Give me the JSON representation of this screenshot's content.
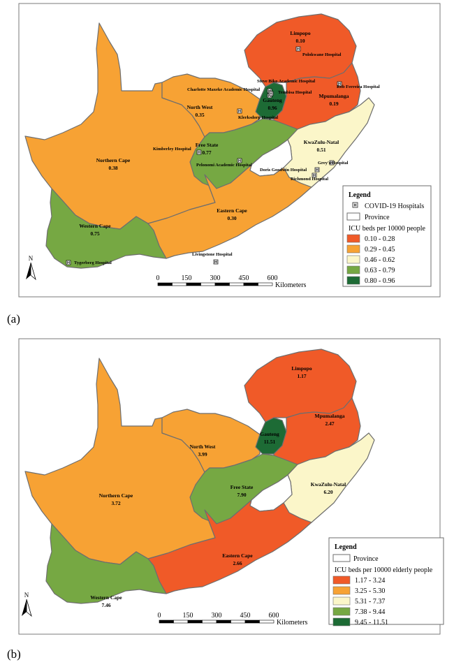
{
  "panel_a": {
    "label": "(a)",
    "provinces": [
      {
        "id": "limpopo",
        "name": "Limpopo",
        "value": "0.10",
        "color": "#f05a28"
      },
      {
        "id": "mpumalanga",
        "name": "Mpumalanga",
        "value": "0.19",
        "color": "#f05a28"
      },
      {
        "id": "gauteng",
        "name": "Gauteng",
        "value": "0.96",
        "color": "#1d6b35"
      },
      {
        "id": "north_west",
        "name": "North West",
        "value": "0.35",
        "color": "#f7a234"
      },
      {
        "id": "free_state",
        "name": "Free State",
        "value": "0.77",
        "color": "#76a843"
      },
      {
        "id": "kwazulu_natal",
        "name": "KwaZulu-Natal",
        "value": "0.51",
        "color": "#fbf6c9"
      },
      {
        "id": "northern_cape",
        "name": "Northern Cape",
        "value": "0.38",
        "color": "#f7a234"
      },
      {
        "id": "eastern_cape",
        "name": "Eastern Cape",
        "value": "0.30",
        "color": "#f7a234"
      },
      {
        "id": "western_cape",
        "name": "Western Cape",
        "value": "0.75",
        "color": "#76a843"
      }
    ],
    "hospitals": [
      "Polokwane Hospital",
      "Steve Biko Academic Hospital",
      "Charlotte Maxeke Academic Hospital",
      "Tembisa Hospital",
      "Rob Ferreira Hospital",
      "Klerksdorp Hospital",
      "Kimberley Hospital",
      "Pelonomi Academic Hospital",
      "Grey's Hospital",
      "Doris Goodwin Hospital",
      "Richmond Hospital",
      "Livingstone Hospital",
      "Tygerberg Hospital"
    ],
    "hospital_symbol": "H",
    "legend": {
      "title": "Legend",
      "hospital_entry": "COVID-19 Hospitals",
      "province_entry": "Province",
      "ramp_title": "ICU beds per 10000 people",
      "classes": [
        {
          "label": "0.10 - 0.28",
          "color": "#f05a28"
        },
        {
          "label": "0.29 - 0.45",
          "color": "#f7a234"
        },
        {
          "label": "0.46 - 0.62",
          "color": "#fbf6c9"
        },
        {
          "label": "0.63 - 0.79",
          "color": "#76a843"
        },
        {
          "label": "0.80 - 0.96",
          "color": "#1d6b35"
        }
      ]
    }
  },
  "panel_b": {
    "label": "(b)",
    "provinces": [
      {
        "id": "limpopo",
        "name": "Limpopo",
        "value": "1.17",
        "color": "#f05a28"
      },
      {
        "id": "mpumalanga",
        "name": "Mpumalanga",
        "value": "2.47",
        "color": "#f05a28"
      },
      {
        "id": "gauteng",
        "name": "Gauteng",
        "value": "11.51",
        "color": "#1d6b35"
      },
      {
        "id": "north_west",
        "name": "North West",
        "value": "3.99",
        "color": "#f7a234"
      },
      {
        "id": "free_state",
        "name": "Free State",
        "value": "7.90",
        "color": "#76a843"
      },
      {
        "id": "kwazulu_natal",
        "name": "KwaZulu-Natal",
        "value": "6.20",
        "color": "#fbf6c9"
      },
      {
        "id": "northern_cape",
        "name": "Northern Cape",
        "value": "3.72",
        "color": "#f7a234"
      },
      {
        "id": "eastern_cape",
        "name": "Eastern Cape",
        "value": "2.66",
        "color": "#f05a28"
      },
      {
        "id": "western_cape",
        "name": "Western Cape",
        "value": "7.46",
        "color": "#76a843"
      }
    ],
    "legend": {
      "title": "Legend",
      "province_entry": "Province",
      "ramp_title": "ICU beds per 10000 elderly people",
      "classes": [
        {
          "label": "1.17 - 3.24",
          "color": "#f05a28"
        },
        {
          "label": "3.25 - 5.30",
          "color": "#f7a234"
        },
        {
          "label": "5.31 - 7.37",
          "color": "#fbf6c9"
        },
        {
          "label": "7.38 - 9.44",
          "color": "#76a843"
        },
        {
          "label": "9.45 - 11.51",
          "color": "#1d6b35"
        }
      ]
    }
  },
  "scale_bar": {
    "ticks": [
      "0",
      "150",
      "300",
      "450",
      "600"
    ],
    "unit": "Kilometers"
  },
  "north_arrow": {
    "label": "N"
  }
}
